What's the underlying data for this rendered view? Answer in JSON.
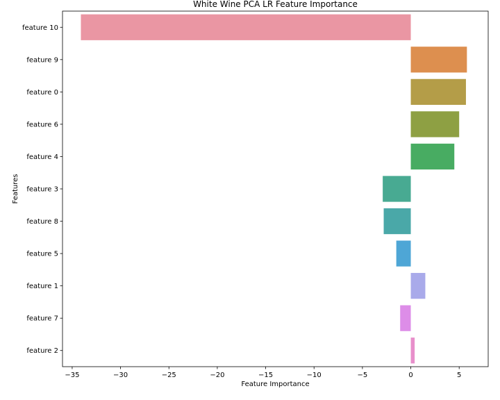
{
  "chart_data": {
    "type": "bar",
    "orientation": "horizontal",
    "title": "White Wine PCA LR Feature Importance",
    "xlabel": "Feature Importance",
    "ylabel": "Features",
    "xlim": [
      -36,
      8
    ],
    "xticks": [
      -35,
      -30,
      -25,
      -20,
      -15,
      -10,
      -5,
      0,
      5
    ],
    "grid": false,
    "categories": [
      "feature 10",
      "feature 9",
      "feature 0",
      "feature 6",
      "feature 4",
      "feature 3",
      "feature 8",
      "feature 5",
      "feature 1",
      "feature 7",
      "feature 2"
    ],
    "values": [
      -34.1,
      5.8,
      5.7,
      5.0,
      4.5,
      -2.9,
      -2.8,
      -1.5,
      1.5,
      -1.1,
      0.4
    ],
    "colors": [
      "#ea96a3",
      "#dd8f4f",
      "#b49d48",
      "#8ea043",
      "#48ac62",
      "#48aa92",
      "#4aa8a8",
      "#4ea6d6",
      "#a9aaea",
      "#dd8de8",
      "#e88fcb"
    ]
  }
}
